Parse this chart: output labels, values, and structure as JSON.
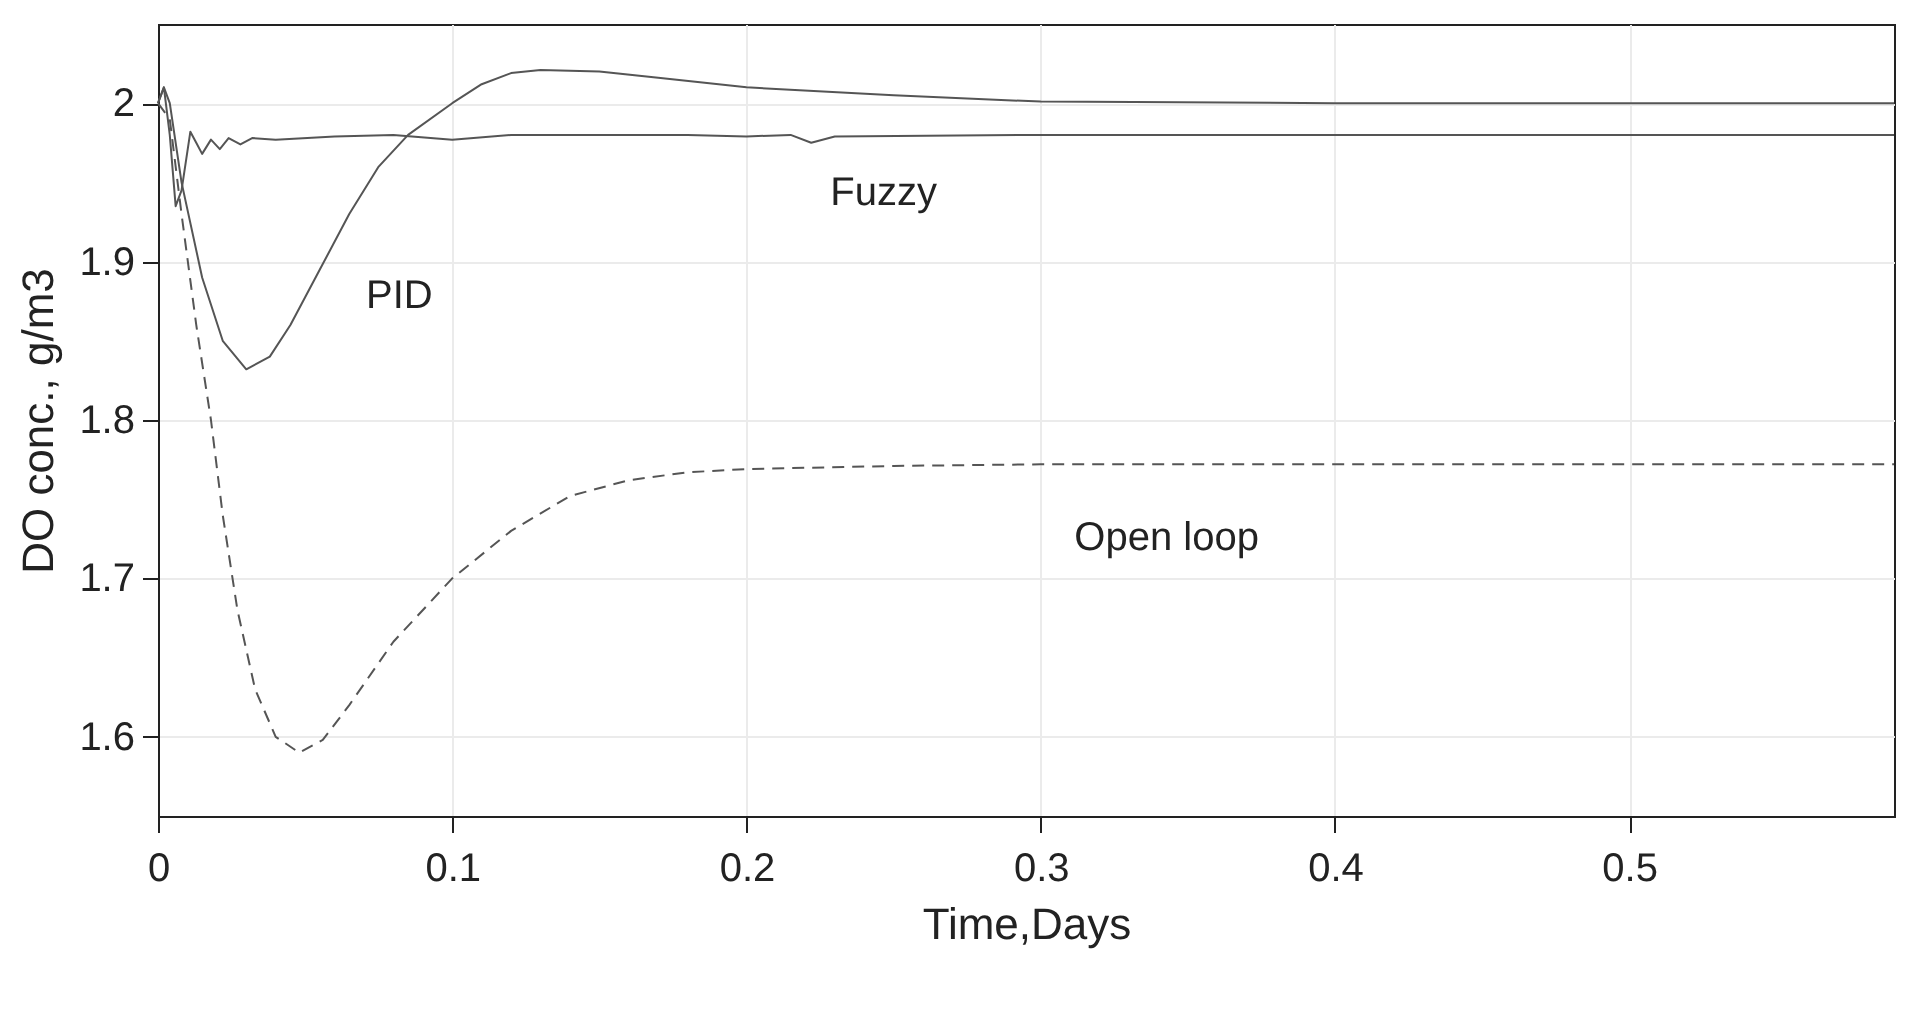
{
  "chart_data": {
    "type": "line",
    "xlabel": "Time,Days",
    "ylabel": "DO conc., g/m3",
    "xlim": [
      0,
      0.59
    ],
    "ylim": [
      1.55,
      2.05
    ],
    "xticks": [
      0,
      0.1,
      0.2,
      0.3,
      0.4,
      0.5
    ],
    "yticks": [
      1.6,
      1.7,
      1.8,
      1.9,
      2
    ],
    "grid": true,
    "marker": "none",
    "series": [
      {
        "name": "PID",
        "color": "#555555",
        "line_style": "solid",
        "x": [
          0,
          0.002,
          0.004,
          0.008,
          0.015,
          0.022,
          0.03,
          0.038,
          0.045,
          0.055,
          0.065,
          0.075,
          0.085,
          0.1,
          0.11,
          0.12,
          0.13,
          0.15,
          0.17,
          0.2,
          0.25,
          0.3,
          0.4,
          0.59
        ],
        "values": [
          2.0,
          2.01,
          2.0,
          1.95,
          1.89,
          1.85,
          1.832,
          1.84,
          1.86,
          1.895,
          1.93,
          1.96,
          1.98,
          2.0,
          2.012,
          2.019,
          2.021,
          2.02,
          2.016,
          2.01,
          2.005,
          2.001,
          2.0,
          2.0
        ]
      },
      {
        "name": "Fuzzy",
        "color": "#555555",
        "line_style": "solid",
        "x": [
          0,
          0.002,
          0.004,
          0.006,
          0.008,
          0.011,
          0.013,
          0.015,
          0.018,
          0.021,
          0.024,
          0.028,
          0.032,
          0.04,
          0.06,
          0.08,
          0.1,
          0.12,
          0.15,
          0.18,
          0.2,
          0.215,
          0.222,
          0.23,
          0.3,
          0.59
        ],
        "values": [
          2.0,
          2.01,
          1.98,
          1.935,
          1.945,
          1.982,
          1.975,
          1.968,
          1.977,
          1.971,
          1.978,
          1.974,
          1.978,
          1.977,
          1.979,
          1.98,
          1.977,
          1.98,
          1.98,
          1.98,
          1.979,
          1.98,
          1.975,
          1.979,
          1.98,
          1.98
        ]
      },
      {
        "name": "Open loop",
        "color": "#555555",
        "line_style": "dashed",
        "x": [
          0,
          0.004,
          0.008,
          0.013,
          0.018,
          0.022,
          0.027,
          0.033,
          0.04,
          0.048,
          0.056,
          0.065,
          0.08,
          0.1,
          0.12,
          0.14,
          0.16,
          0.18,
          0.2,
          0.25,
          0.3,
          0.59
        ],
        "values": [
          2.0,
          1.99,
          1.93,
          1.86,
          1.8,
          1.74,
          1.68,
          1.63,
          1.6,
          1.59,
          1.598,
          1.62,
          1.66,
          1.7,
          1.73,
          1.752,
          1.762,
          1.767,
          1.769,
          1.771,
          1.772,
          1.772
        ]
      }
    ]
  }
}
